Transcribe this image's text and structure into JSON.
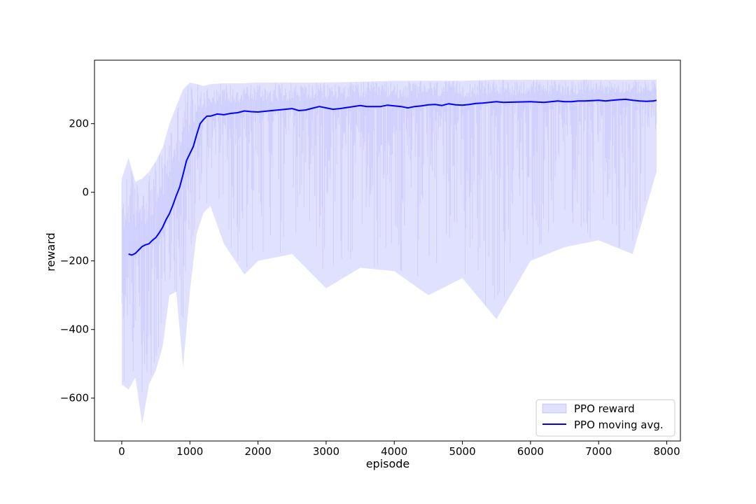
{
  "chart_data": {
    "type": "line",
    "title": "",
    "xlabel": "episode",
    "ylabel": "reward",
    "xlim": [
      -400,
      8200
    ],
    "ylim": [
      -725,
      385
    ],
    "x_ticks": [
      0,
      1000,
      2000,
      3000,
      4000,
      5000,
      6000,
      7000,
      8000
    ],
    "y_ticks": [
      -600,
      -400,
      -200,
      0,
      200
    ],
    "x_tick_labels": [
      "0",
      "1000",
      "2000",
      "3000",
      "4000",
      "5000",
      "6000",
      "7000",
      "8000"
    ],
    "y_tick_labels": [
      "−600",
      "−400",
      "−200",
      "0",
      "200"
    ],
    "grid": false,
    "legend": {
      "position": "lower-right",
      "entries": [
        "PPO reward",
        "PPO moving avg."
      ]
    },
    "series": [
      {
        "name": "PPO reward",
        "style": "filled band (per-episode raw reward, upper/lower envelope)",
        "color": "#0000ff",
        "opacity": 0.12,
        "x": [
          0,
          100,
          200,
          300,
          400,
          500,
          600,
          700,
          800,
          900,
          1000,
          1100,
          1200,
          1300,
          1500,
          1800,
          2000,
          2500,
          3000,
          3500,
          4000,
          4500,
          5000,
          5500,
          6000,
          6500,
          7000,
          7500,
          7850
        ],
        "upper": [
          40,
          100,
          30,
          40,
          60,
          90,
          130,
          200,
          250,
          300,
          320,
          315,
          310,
          315,
          318,
          318,
          320,
          320,
          320,
          322,
          325,
          325,
          325,
          328,
          328,
          328,
          328,
          328,
          328
        ],
        "lower": [
          -560,
          -575,
          -540,
          -675,
          -560,
          -520,
          -450,
          -300,
          -290,
          -510,
          -290,
          -120,
          -60,
          -40,
          -150,
          -240,
          -200,
          -180,
          -280,
          -220,
          -230,
          -300,
          -250,
          -370,
          -200,
          -160,
          -140,
          -180,
          60
        ]
      },
      {
        "name": "PPO moving avg.",
        "style": "solid line",
        "color": "#0000ff",
        "x": [
          100,
          150,
          200,
          250,
          300,
          350,
          400,
          450,
          500,
          550,
          600,
          650,
          700,
          750,
          800,
          850,
          900,
          950,
          1000,
          1050,
          1100,
          1150,
          1200,
          1250,
          1300,
          1350,
          1400,
          1500,
          1600,
          1700,
          1800,
          1900,
          2000,
          2200,
          2400,
          2500,
          2600,
          2700,
          2800,
          2900,
          3000,
          3100,
          3200,
          3400,
          3500,
          3600,
          3800,
          3900,
          4000,
          4100,
          4200,
          4300,
          4400,
          4500,
          4600,
          4700,
          4800,
          4900,
          5000,
          5100,
          5200,
          5300,
          5400,
          5500,
          5600,
          5800,
          6000,
          6200,
          6300,
          6400,
          6500,
          6600,
          6700,
          6800,
          6900,
          7000,
          7100,
          7200,
          7300,
          7400,
          7500,
          7600,
          7700,
          7800,
          7850
        ],
        "y": [
          -180,
          -183,
          -178,
          -168,
          -158,
          -153,
          -150,
          -140,
          -132,
          -118,
          -102,
          -80,
          -62,
          -38,
          -10,
          15,
          52,
          92,
          113,
          133,
          168,
          200,
          212,
          222,
          222,
          225,
          228,
          226,
          230,
          232,
          237,
          235,
          234,
          238,
          242,
          244,
          238,
          240,
          245,
          250,
          246,
          242,
          244,
          250,
          253,
          250,
          250,
          254,
          252,
          250,
          246,
          250,
          252,
          255,
          256,
          253,
          258,
          255,
          254,
          256,
          259,
          260,
          262,
          264,
          262,
          263,
          264,
          262,
          264,
          266,
          264,
          264,
          266,
          266,
          267,
          268,
          266,
          268,
          270,
          271,
          268,
          266,
          265,
          266,
          268
        ]
      }
    ]
  }
}
